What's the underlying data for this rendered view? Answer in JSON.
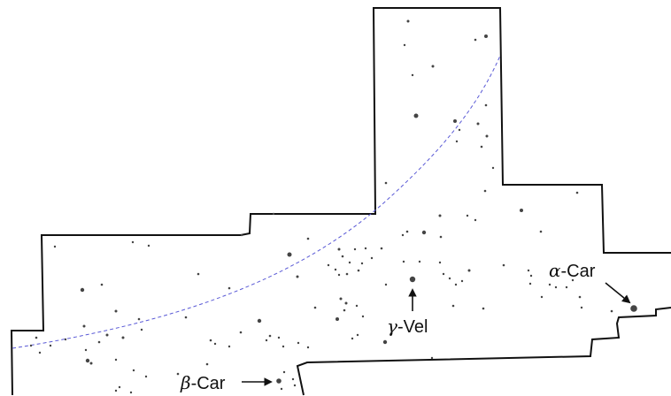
{
  "colors": {
    "background": "#ffffff",
    "boundary": "#111111",
    "star": "#444444",
    "ecliptic": "#5a5ad6",
    "label": "#111111"
  },
  "labels": {
    "alpha_car": {
      "greek": "α",
      "name": "-Car"
    },
    "beta_car": {
      "greek": "β",
      "name": "-Car"
    },
    "gamma_vel": {
      "greek": "γ",
      "name": "-Vel"
    }
  }
}
